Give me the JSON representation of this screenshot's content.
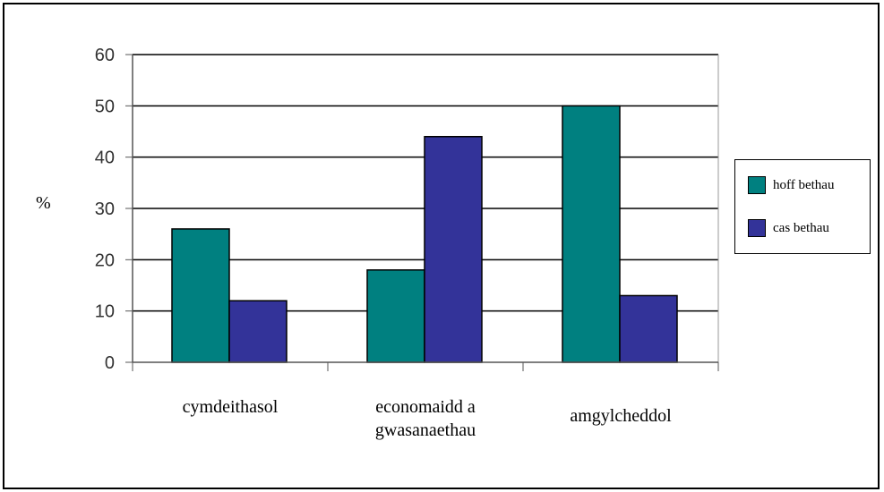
{
  "chart_data": {
    "type": "bar",
    "categories": [
      "cymdeithasol",
      "economaidd a\ngwasanaethau",
      "amgylcheddol"
    ],
    "series": [
      {
        "name": "hoff bethau",
        "values": [
          26,
          18,
          50
        ],
        "color": "#008080"
      },
      {
        "name": "cas bethau",
        "values": [
          12,
          44,
          13
        ],
        "color": "#333399"
      }
    ],
    "title": "",
    "xlabel": "",
    "ylabel": "%",
    "ylim": [
      0,
      60
    ],
    "yticks": [
      0,
      10,
      20,
      30,
      40,
      50,
      60
    ],
    "grid": "horizontal",
    "legend": "right"
  }
}
